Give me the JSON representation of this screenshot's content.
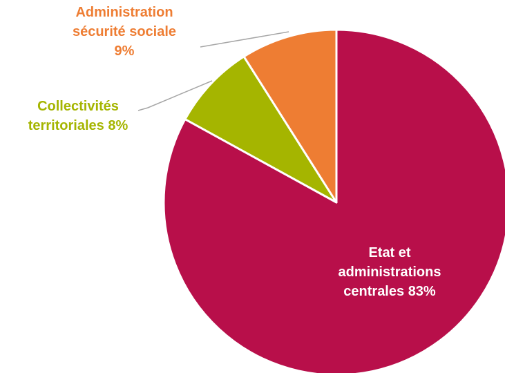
{
  "chart_data": {
    "type": "pie",
    "categories": [
      "Etat et administrations centrales",
      "Collectivités territoriales",
      "Administration sécurité sociale"
    ],
    "values": [
      83,
      8,
      9
    ],
    "value_labels": [
      "83%",
      "8%",
      "9%"
    ],
    "colors": [
      "#b80f4a",
      "#a5b500",
      "#ee7d33"
    ]
  }
}
